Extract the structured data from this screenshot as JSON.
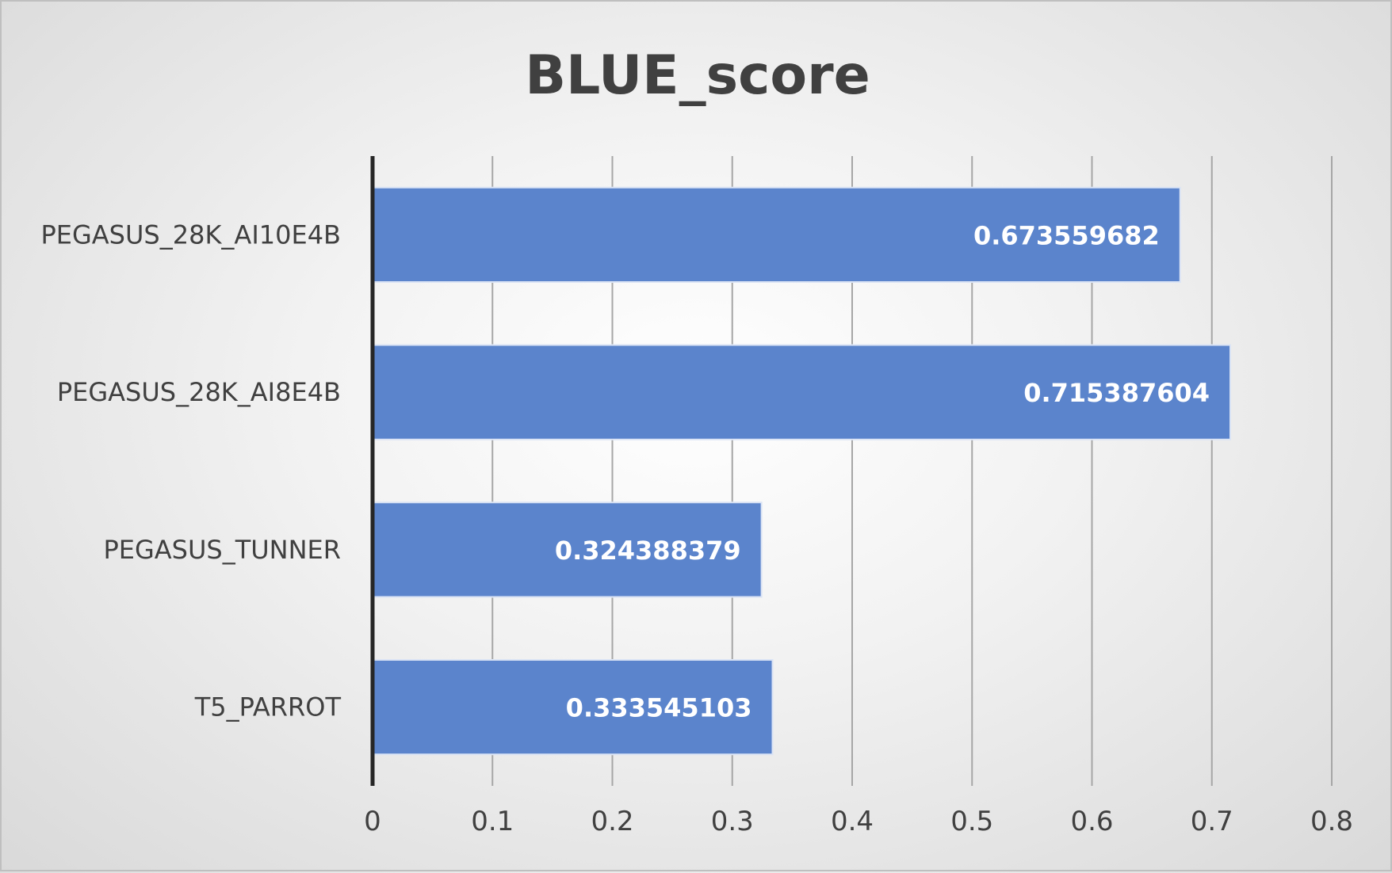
{
  "chart_data": {
    "type": "bar",
    "orientation": "horizontal",
    "title": "BLUE_score",
    "xlabel": "",
    "ylabel": "",
    "categories": [
      "PEGASUS_28K_AI10E4B",
      "PEGASUS_28K_AI8E4B",
      "PEGASUS_TUNNER",
      "T5_PARROT"
    ],
    "values": [
      0.673559682,
      0.715387604,
      0.324388379,
      0.333545103
    ],
    "value_labels": [
      "0.673559682",
      "0.715387604",
      "0.324388379",
      "0.333545103"
    ],
    "xlim": [
      0,
      0.8
    ],
    "ticks": [
      "0",
      "0.1",
      "0.2",
      "0.3",
      "0.4",
      "0.5",
      "0.6",
      "0.7",
      "0.8"
    ],
    "tick_values": [
      0,
      0.1,
      0.2,
      0.3,
      0.4,
      0.5,
      0.6,
      0.7,
      0.8
    ],
    "grid": "vertical",
    "legend": "none",
    "colors": {
      "bar": "#5b84cc",
      "text": "#404040",
      "grid": "#a6a6a6",
      "axis": "#262626"
    }
  }
}
